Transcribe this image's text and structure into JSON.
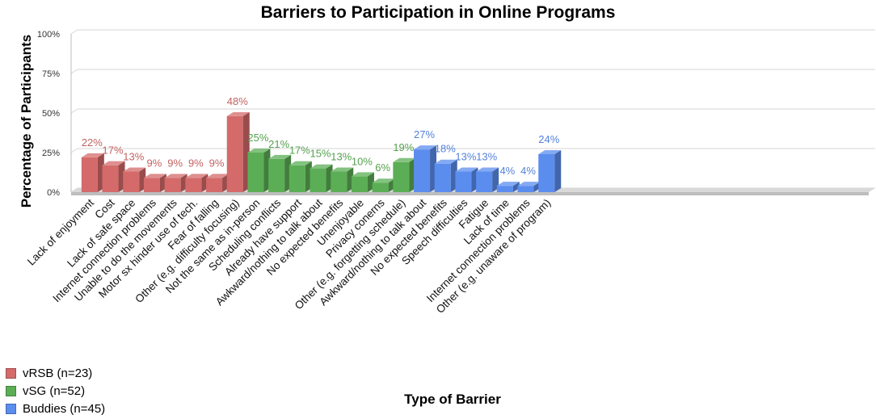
{
  "chart_data": {
    "type": "bar",
    "title": "Barriers to Participation in Online Programs",
    "xlabel": "Type of Barrier",
    "ylabel": "Percentage of Participants",
    "ylim": [
      0,
      100
    ],
    "yticks": [
      "0%",
      "25%",
      "50%",
      "75%",
      "100%"
    ],
    "grid": true,
    "legend_position": "bottom-left",
    "groups": [
      {
        "name": "vRSB (n=23)",
        "color": "#d46a6a",
        "categories": [
          "Lack of enjoyment",
          "Cost",
          "Lack of safe space",
          "Internet connection problems",
          "Unable to do the movements",
          "Motor sx hinder use of tech.",
          "Fear of falling",
          "Other (e.g. difficulty focusing)"
        ],
        "values": [
          22,
          17,
          13,
          9,
          9,
          9,
          9,
          48
        ],
        "labels": [
          "22%",
          "17%",
          "13%",
          "9%",
          "9%",
          "9%",
          "9%",
          "48%"
        ]
      },
      {
        "name": "vSG (n=52)",
        "color": "#5bae55",
        "categories": [
          "Not the same as in-person",
          "Scheduling conflicts",
          "Already have support",
          "Awkward/nothing to talk about",
          "No expected benefits",
          "Unenjoyable",
          "Privacy conerns",
          "Other (e.g. forgetting schedule)"
        ],
        "values": [
          25,
          21,
          17,
          15,
          13,
          10,
          6,
          19
        ],
        "labels": [
          "25%",
          "21%",
          "17%",
          "15%",
          "13%",
          "10%",
          "6%",
          "19%"
        ]
      },
      {
        "name": "Buddies (n=45)",
        "color": "#5b8def",
        "categories": [
          "Awkward/nothing to talk about",
          "No expected benefits",
          "Speech difficulties",
          "Fatigue",
          "Lack of time",
          "Internet connection problems",
          "Other (e.g. unaware of program)"
        ],
        "values": [
          27,
          18,
          13,
          13,
          4,
          4,
          24
        ],
        "labels": [
          "27%",
          "18%",
          "13%",
          "13%",
          "4%",
          "4%",
          "24%"
        ]
      }
    ]
  },
  "legend": {
    "items": [
      {
        "label": "vRSB (n=23)",
        "color": "#d46a6a"
      },
      {
        "label": "vSG (n=52)",
        "color": "#5bae55"
      },
      {
        "label": "Buddies (n=45)",
        "color": "#5b8def"
      }
    ]
  }
}
